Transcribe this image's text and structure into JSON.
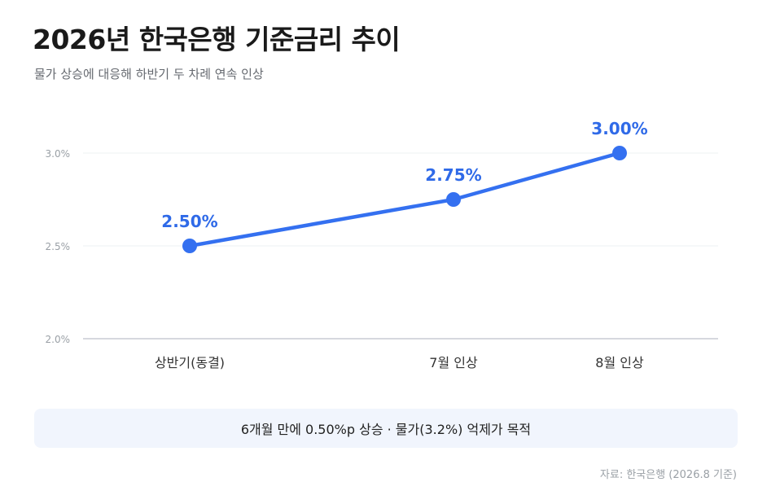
{
  "header": {
    "title": "2026년 한국은행 기준금리 추이",
    "subtitle": "물가 상승에 대응해 하반기 두 차례 연속 인상"
  },
  "chart_data": {
    "type": "line",
    "categories": [
      "상반기(동결)",
      "7월 인상",
      "8월 인상"
    ],
    "series": [
      {
        "values": [
          2.5,
          2.75,
          3.0
        ],
        "data_labels": [
          "2.50%",
          "2.75%",
          "3.00%"
        ]
      }
    ],
    "y_ticks": [
      {
        "value": 2.0,
        "label": "2.0%"
      },
      {
        "value": 2.5,
        "label": "2.5%"
      },
      {
        "value": 3.0,
        "label": "3.0%"
      }
    ],
    "ylim": [
      2.0,
      3.0
    ],
    "grid": true,
    "line_color": "#3470f0",
    "label_color": "#2f6ae8"
  },
  "note": {
    "text": "6개월 만에 0.50%p 상승 · 물가(3.2%) 억제가 목적"
  },
  "source": {
    "text": "자료: 한국은행 (2026.8 기준)"
  }
}
